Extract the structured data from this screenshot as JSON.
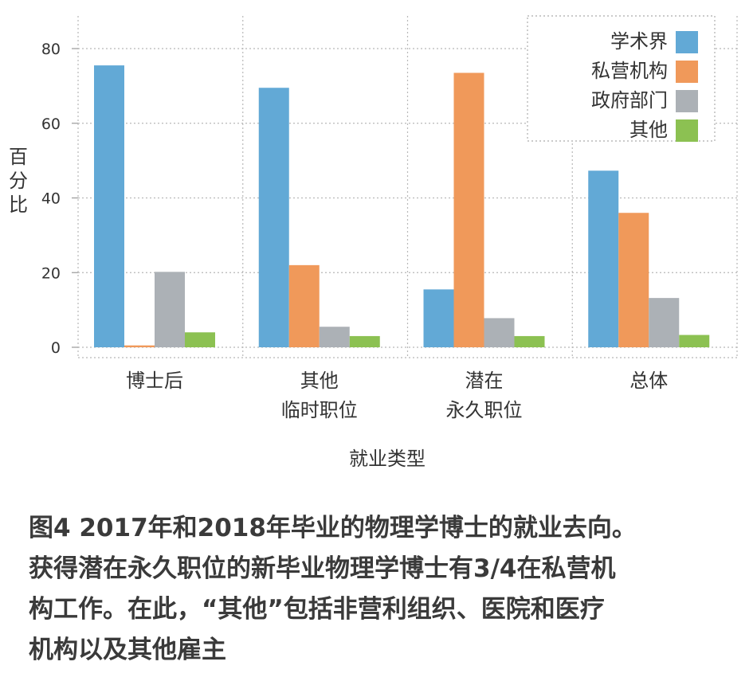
{
  "chart_data": {
    "type": "bar",
    "xlabel": "就业类型",
    "ylabel_chars": [
      "百",
      "分",
      "比"
    ],
    "ylim": [
      0,
      80
    ],
    "yticks": [
      0,
      20,
      40,
      60,
      80
    ],
    "grid": true,
    "legend_position": "top-right",
    "categories": [
      {
        "lines": [
          "博士后"
        ]
      },
      {
        "lines": [
          "其他",
          "临时职位"
        ]
      },
      {
        "lines": [
          "潜在",
          "永久职位"
        ]
      },
      {
        "lines": [
          "总体"
        ]
      }
    ],
    "series": [
      {
        "name": "学术界",
        "color": "#62a9d6",
        "values": [
          75.5,
          69.5,
          15.5,
          47.3
        ]
      },
      {
        "name": "私营机构",
        "color": "#f0995a",
        "values": [
          0.5,
          22,
          73.5,
          36
        ]
      },
      {
        "name": "政府部门",
        "color": "#acb1b6",
        "values": [
          20.2,
          5.5,
          7.8,
          13.2
        ]
      },
      {
        "name": "其他",
        "color": "#8cc152",
        "values": [
          4,
          3,
          3,
          3.3
        ]
      }
    ]
  },
  "caption": {
    "lines": [
      "图4 2017年和2018年毕业的物理学博士的就业去向。",
      "获得潜在永久职位的新毕业物理学博士有3/4在私营机",
      "构工作。在此，“其他”包括非营利组织、医院和医疗",
      "机构以及其他雇主"
    ]
  }
}
